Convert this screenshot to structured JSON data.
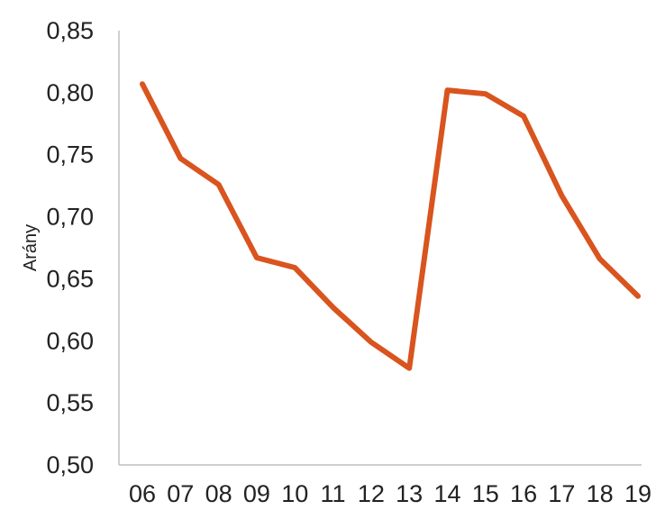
{
  "chart_data": {
    "type": "line",
    "title": "",
    "xlabel": "",
    "ylabel": "Arány",
    "categories": [
      "06",
      "07",
      "08",
      "09",
      "10",
      "11",
      "12",
      "13",
      "14",
      "15",
      "16",
      "17",
      "18",
      "19"
    ],
    "series": [
      {
        "values": [
          0.807,
          0.747,
          0.726,
          0.667,
          0.659,
          0.627,
          0.599,
          0.578,
          0.802,
          0.799,
          0.781,
          0.717,
          0.666,
          0.636
        ],
        "color": "#d9541e"
      }
    ],
    "ylim": [
      0.5,
      0.85
    ],
    "yticks": [
      "0,50",
      "0,55",
      "0,60",
      "0,65",
      "0,70",
      "0,75",
      "0,80",
      "0,85"
    ],
    "grid": false,
    "legend": "none"
  }
}
